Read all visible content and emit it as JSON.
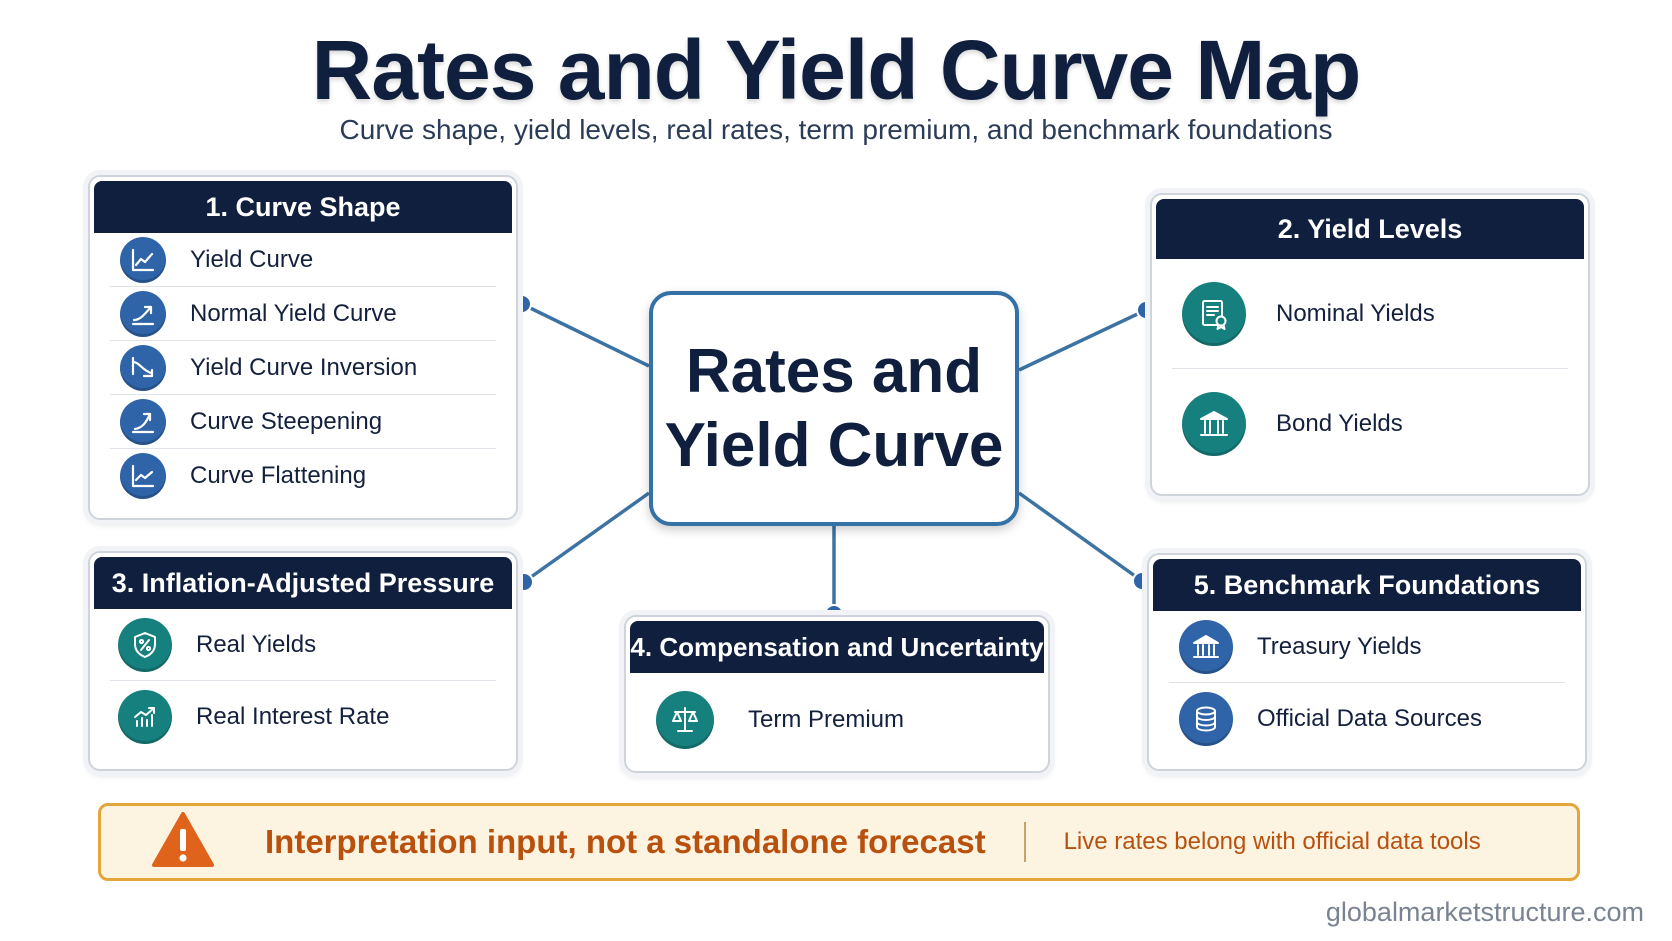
{
  "title": "Rates and Yield Curve Map",
  "subtitle": "Curve shape, yield levels, real rates, term premium, and benchmark foundations",
  "hub": {
    "line1": "Rates and",
    "line2": "Yield Curve"
  },
  "panels": {
    "curve_shape": {
      "title": "1. Curve Shape",
      "items": [
        {
          "label": "Yield Curve",
          "icon": "line-chart-icon"
        },
        {
          "label": "Normal Yield Curve",
          "icon": "trend-up-icon"
        },
        {
          "label": "Yield Curve Inversion",
          "icon": "trend-down-icon"
        },
        {
          "label": "Curve Steepening",
          "icon": "trend-up-arrow-icon"
        },
        {
          "label": "Curve Flattening",
          "icon": "line-chart-icon"
        }
      ]
    },
    "yield_levels": {
      "title": "2. Yield Levels",
      "items": [
        {
          "label": "Nominal Yields",
          "icon": "certificate-icon"
        },
        {
          "label": "Bond Yields",
          "icon": "bank-icon"
        }
      ]
    },
    "inflation_adjusted": {
      "title": "3. Inflation-Adjusted Pressure",
      "items": [
        {
          "label": "Real Yields",
          "icon": "percent-shield-icon"
        },
        {
          "label": "Real Interest Rate",
          "icon": "bar-growth-icon"
        }
      ]
    },
    "compensation": {
      "title": "4. Compensation and Uncertainty",
      "items": [
        {
          "label": "Term Premium",
          "icon": "scales-icon"
        }
      ]
    },
    "benchmark": {
      "title": "5. Benchmark Foundations",
      "items": [
        {
          "label": "Treasury Yields",
          "icon": "bank-icon"
        },
        {
          "label": "Official Data Sources",
          "icon": "database-icon"
        }
      ]
    }
  },
  "notice": {
    "main": "Interpretation input, not a standalone forecast",
    "side": "Live rates belong with official data tools",
    "icon": "warning-icon"
  },
  "footer": "globalmarketstructure.com",
  "colors": {
    "navy": "#0f1f3d",
    "blue": "#2f65a8",
    "teal": "#16807e",
    "connector": "#3371a6",
    "warning": "#e4a53a"
  }
}
